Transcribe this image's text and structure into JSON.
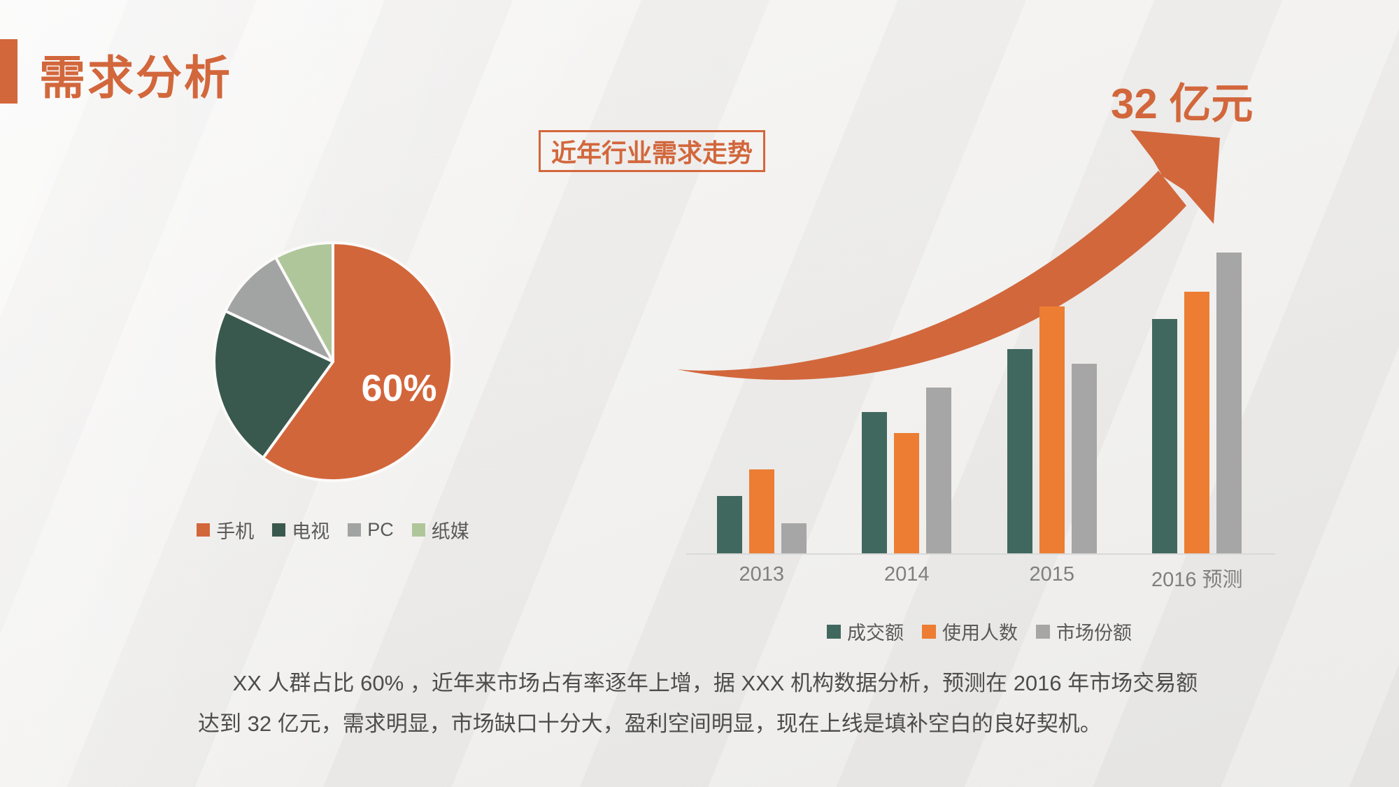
{
  "slide": {
    "title": "需求分析",
    "trend_label": "近年行业需求走势",
    "highlight_value": "32 亿元",
    "body_text": "XX 人群占比 60% ，近年来市场占有率逐年上增，据 XXX 机构数据分析，预测在 2016 年市场交易额达到 32 亿元，需求明显，市场缺口十分大，盈利空间明显，现在上线是填补空白的良好契机。"
  },
  "colors": {
    "accent_orange": "#D2673C",
    "bar_orange": "#EC7D32",
    "pie_orange": "#D2663B",
    "pie_teal": "#3A594E",
    "bar_teal": "#41685F",
    "gray": "#A6A6A6",
    "light_green": "#AFC69B",
    "slice_border": "#FBFAF9",
    "text_dark": "#4D4D4D",
    "text_gray": "#7F7F7F",
    "legend_text": "#595959",
    "background": "#F1F0EF"
  },
  "chart_data": [
    {
      "type": "pie",
      "labels": [
        "手机",
        "电视",
        "PC",
        "纸媒"
      ],
      "values": [
        60,
        22,
        10,
        8
      ],
      "unit": "%",
      "colors": [
        "#D2663B",
        "#3A594E",
        "#A2A4A3",
        "#AFC69B"
      ],
      "data_label": "60%",
      "start_angle_deg": 0,
      "direction": "clockwise",
      "legend_position": "bottom"
    },
    {
      "type": "bar",
      "title": "近年行业需求走势",
      "categories": [
        "2013",
        "2014",
        "2015",
        "2016 预测"
      ],
      "series": [
        {
          "name": "成交额",
          "color": "#41685F",
          "values": [
            1.9,
            4.7,
            6.8,
            7.8
          ]
        },
        {
          "name": "使用人数",
          "color": "#EC7D32",
          "values": [
            2.8,
            4.0,
            8.2,
            8.7
          ]
        },
        {
          "name": "市场份额",
          "color": "#A6A6A6",
          "values": [
            1.0,
            5.5,
            6.3,
            10.0
          ]
        }
      ],
      "ylim": [
        0,
        10
      ],
      "y_axis_visible": false,
      "gridlines": false,
      "legend_position": "bottom",
      "annotation": "32 亿元"
    }
  ]
}
